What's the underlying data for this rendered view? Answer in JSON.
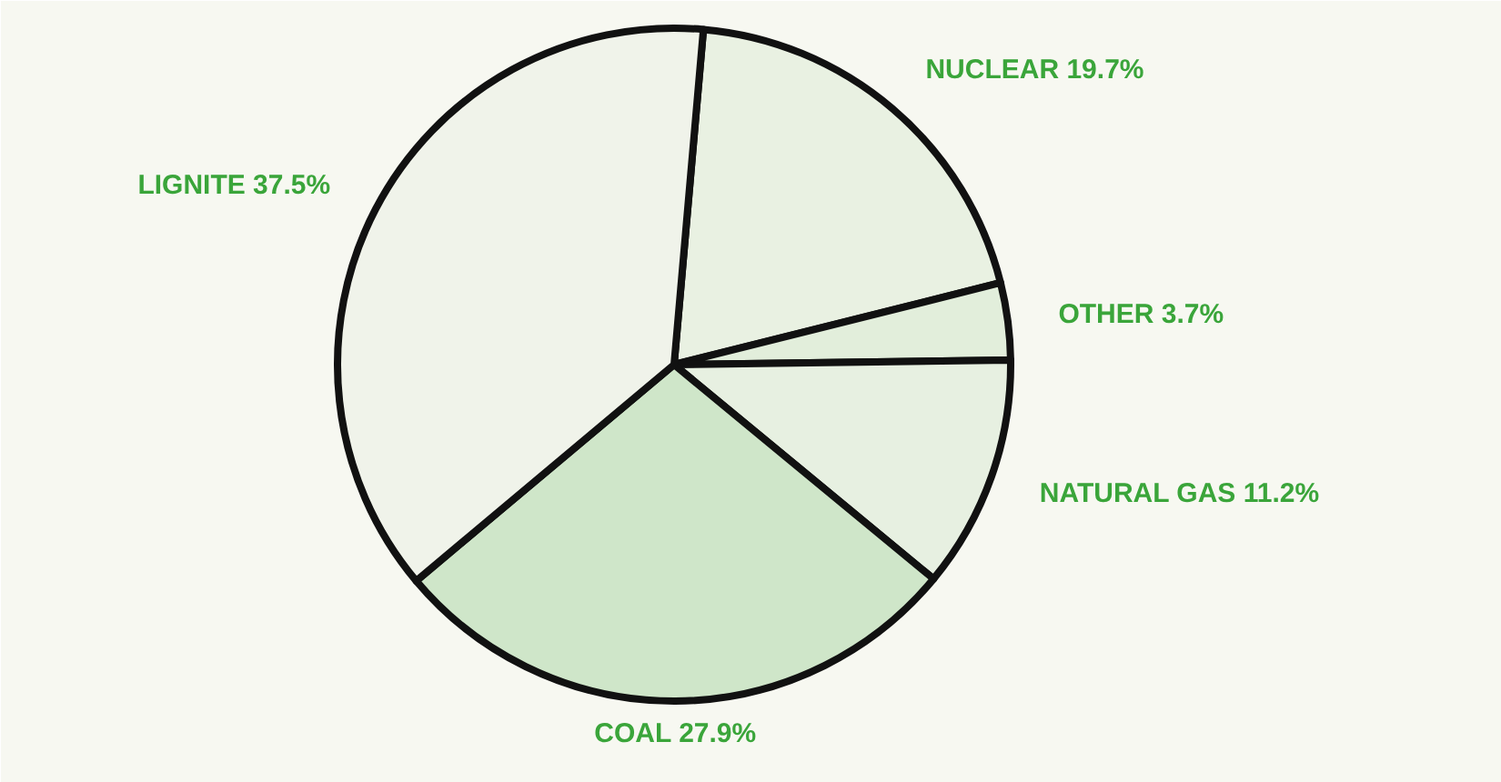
{
  "chart_data": {
    "type": "pie",
    "categories": [
      "NUCLEAR",
      "OTHER",
      "NATURAL GAS",
      "COAL",
      "LIGNITE"
    ],
    "values": [
      19.7,
      3.7,
      11.2,
      27.9,
      37.5
    ],
    "value_labels": [
      "19.7%",
      "3.7%",
      "11.2%",
      "27.9%",
      "37.5%"
    ],
    "colors": [
      "#e9f1e2",
      "#e2eedb",
      "#e7f0e1",
      "#cfe6c9",
      "#f0f3ea"
    ]
  }
}
